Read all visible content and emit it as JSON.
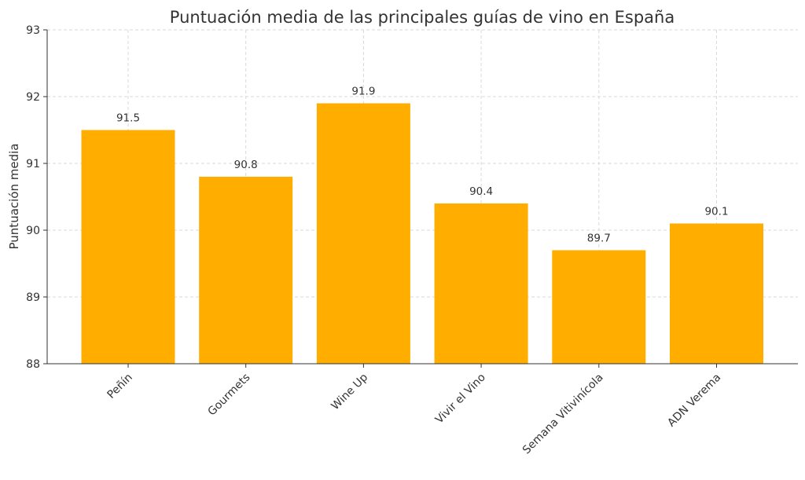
{
  "chart_data": {
    "type": "bar",
    "title": "Puntuación media de las principales guías de vino en España",
    "xlabel": "",
    "ylabel": "Puntuación media",
    "categories": [
      "Peñín",
      "Gourmets",
      "Wine Up",
      "Vivir el Vino",
      "Semana Vitivinícola",
      "ADN Verema"
    ],
    "values": [
      91.5,
      90.8,
      91.9,
      90.4,
      89.7,
      90.1
    ],
    "data_labels": [
      "91.5",
      "90.8",
      "91.9",
      "90.4",
      "89.7",
      "90.1"
    ],
    "ylim": [
      88,
      93
    ],
    "yticks": [
      "88",
      "89",
      "90",
      "91",
      "92",
      "93"
    ],
    "grid": true,
    "bar_color": "#FFAE00"
  }
}
